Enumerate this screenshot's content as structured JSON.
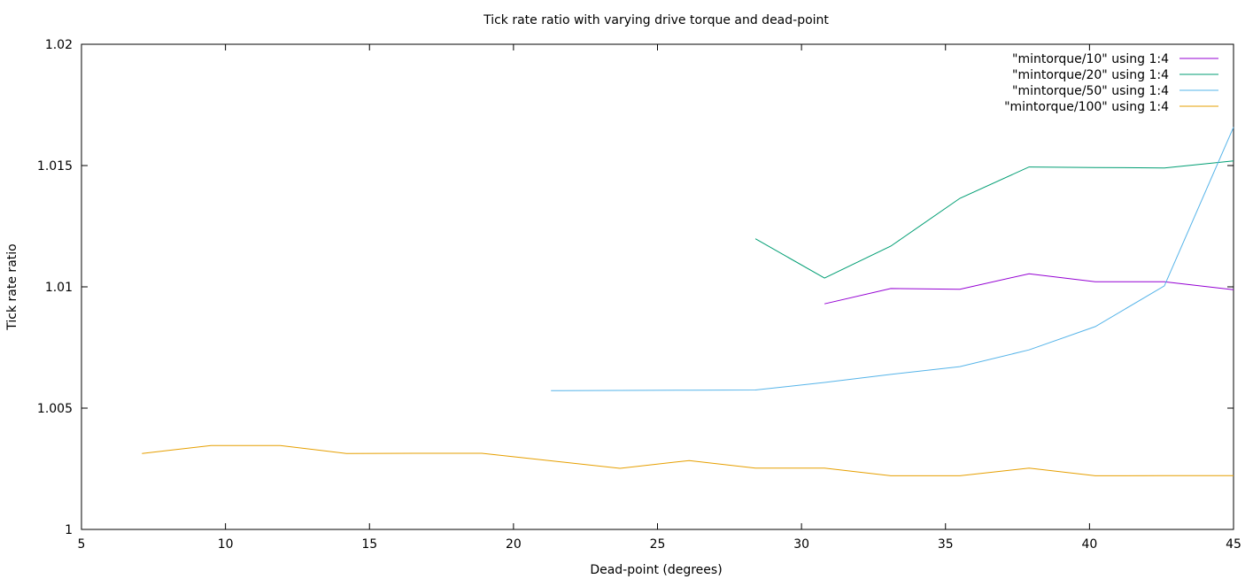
{
  "chart_data": {
    "type": "line",
    "title": "Tick rate ratio with varying drive torque and dead-point",
    "xlabel": "Dead-point (degrees)",
    "ylabel": "Tick rate ratio",
    "xlim": [
      5,
      45
    ],
    "ylim": [
      1,
      1.02
    ],
    "xticks": [
      5,
      10,
      15,
      20,
      25,
      30,
      35,
      40,
      45
    ],
    "yticks": [
      1,
      1.005,
      1.01,
      1.015,
      1.02
    ],
    "ytick_labels": [
      "1",
      "1.005",
      "1.01",
      "1.015",
      "1.02"
    ],
    "grid": false,
    "legend_position": "top-right",
    "series": [
      {
        "name": "\"mintorque/10\" using 1:4",
        "color": "#9400d3",
        "x": [
          30.8,
          33.1,
          35.5,
          37.9,
          40.2,
          42.6,
          45.0
        ],
        "y": [
          1.0093,
          1.00993,
          1.0099,
          1.01054,
          1.01021,
          1.01021,
          1.00988
        ]
      },
      {
        "name": "\"mintorque/20\" using 1:4",
        "color": "#009e73",
        "x": [
          28.4,
          30.8,
          33.1,
          35.5,
          37.9,
          40.2,
          42.6,
          45.0
        ],
        "y": [
          1.01198,
          1.01036,
          1.01168,
          1.01365,
          1.01494,
          1.01492,
          1.0149,
          1.01519
        ]
      },
      {
        "name": "\"mintorque/50\" using 1:4",
        "color": "#56b4e9",
        "x": [
          21.3,
          23.7,
          26.1,
          28.4,
          30.8,
          33.1,
          35.5,
          37.9,
          40.2,
          42.6,
          45.0
        ],
        "y": [
          1.00572,
          1.00573,
          1.00574,
          1.00575,
          1.00606,
          1.00639,
          1.00671,
          1.0074,
          1.00836,
          1.01004,
          1.01658
        ]
      },
      {
        "name": "\"mintorque/100\" using 1:4",
        "color": "#e69f00",
        "x": [
          7.1,
          9.5,
          11.9,
          14.2,
          16.6,
          18.9,
          21.3,
          23.7,
          26.1,
          28.4,
          30.8,
          33.1,
          35.5,
          37.9,
          40.2,
          42.6,
          45.0
        ],
        "y": [
          1.00313,
          1.00346,
          1.00346,
          1.00313,
          1.00314,
          1.00314,
          1.00283,
          1.00252,
          1.00284,
          1.00253,
          1.00253,
          1.00221,
          1.00221,
          1.00253,
          1.00221,
          1.00222,
          1.00222
        ]
      }
    ]
  }
}
